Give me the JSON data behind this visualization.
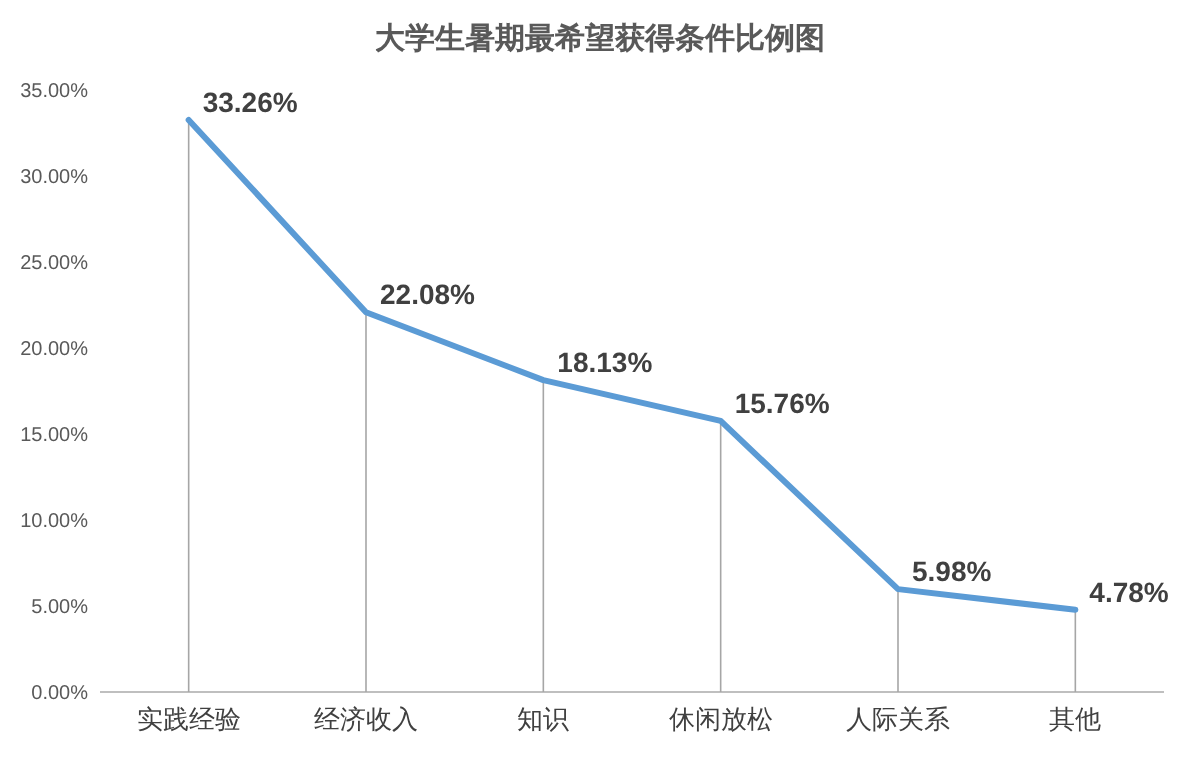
{
  "chart_data": {
    "type": "line",
    "title": "大学生暑期最希望获得条件比例图",
    "categories": [
      "实践经验",
      "经济收入",
      "知识",
      "休闲放松",
      "人际关系",
      "其他"
    ],
    "series": [
      {
        "color": "#5b9bd5",
        "values": [
          33.26,
          22.08,
          18.13,
          15.76,
          5.98,
          4.78
        ],
        "value_labels": [
          "33.26%",
          "22.08%",
          "18.13%",
          "15.76%",
          "5.98%",
          "4.78%"
        ]
      }
    ],
    "ylim": [
      0,
      35
    ],
    "yticks": [
      {
        "value": 0,
        "label": "0.00%"
      },
      {
        "value": 5,
        "label": "5.00%"
      },
      {
        "value": 10,
        "label": "10.00%"
      },
      {
        "value": 15,
        "label": "15.00%"
      },
      {
        "value": 20,
        "label": "20.00%"
      },
      {
        "value": 25,
        "label": "25.00%"
      },
      {
        "value": 30,
        "label": "30.00%"
      },
      {
        "value": 35,
        "label": "35.00%"
      }
    ],
    "grid": "x",
    "marker": "none",
    "line_style": "solid"
  }
}
